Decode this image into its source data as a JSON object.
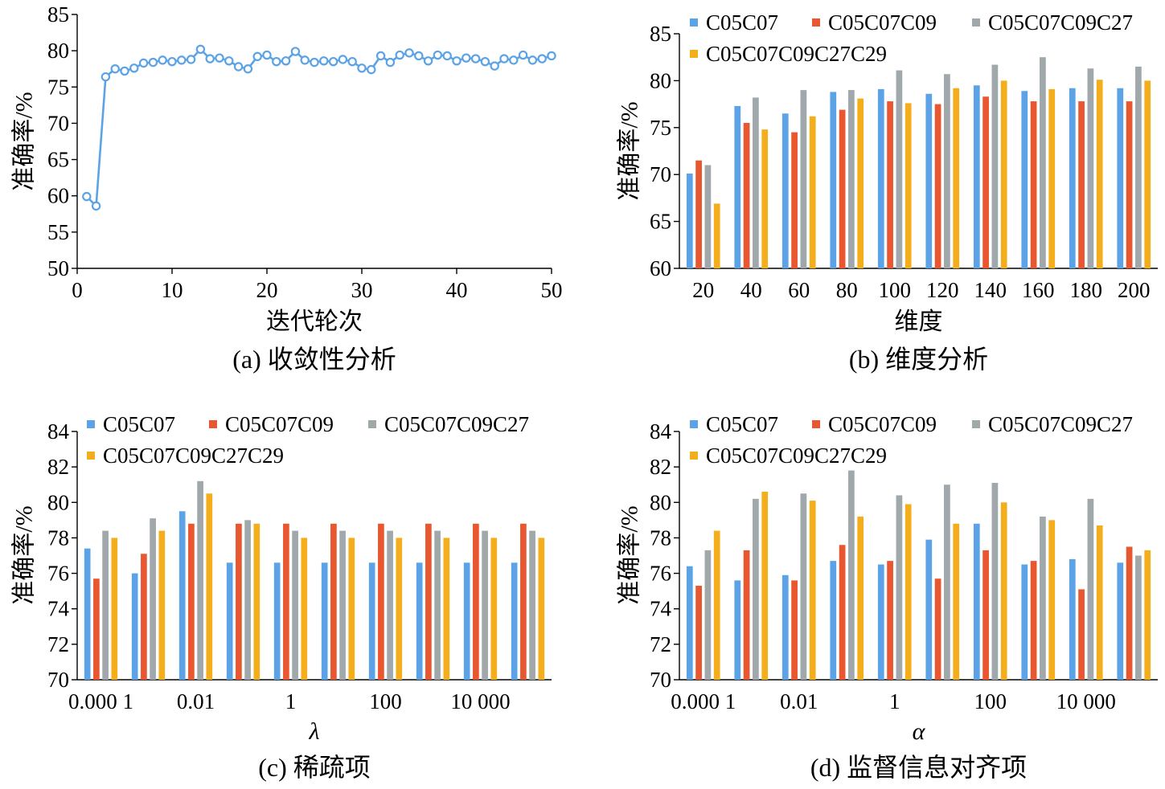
{
  "charts": [
    {
      "id": "a",
      "type": "line",
      "caption": "(a) 收敛性分析",
      "xlabel": "迭代轮次",
      "ylabel": "准确率/%",
      "xlim": [
        0,
        50
      ],
      "ylim": [
        50,
        85
      ],
      "xticks": [
        0,
        10,
        20,
        30,
        40,
        50
      ],
      "yticks": [
        50,
        55,
        60,
        65,
        70,
        75,
        80,
        85
      ],
      "color": "#5BA3E6",
      "x": [
        1,
        2,
        3,
        4,
        5,
        6,
        7,
        8,
        9,
        10,
        11,
        12,
        13,
        14,
        15,
        16,
        17,
        18,
        19,
        20,
        21,
        22,
        23,
        24,
        25,
        26,
        27,
        28,
        29,
        30,
        31,
        32,
        33,
        34,
        35,
        36,
        37,
        38,
        39,
        40,
        41,
        42,
        43,
        44,
        45,
        46,
        47,
        48,
        49,
        50
      ],
      "y": [
        59.9,
        58.6,
        76.4,
        77.5,
        77.2,
        77.6,
        78.3,
        78.4,
        78.7,
        78.5,
        78.7,
        78.8,
        80.2,
        78.9,
        79.0,
        78.6,
        77.8,
        77.5,
        79.2,
        79.4,
        78.5,
        78.6,
        79.9,
        78.7,
        78.4,
        78.6,
        78.5,
        78.8,
        78.5,
        77.6,
        77.4,
        79.3,
        78.4,
        79.4,
        79.7,
        79.3,
        78.6,
        79.4,
        79.3,
        78.6,
        79.0,
        78.9,
        78.5,
        77.9,
        78.9,
        78.7,
        79.4,
        78.7,
        78.9,
        79.3
      ]
    },
    {
      "id": "b",
      "type": "bar",
      "caption": "(b) 维度分析",
      "xlabel": "维度",
      "ylabel": "准确率/%",
      "ylim": [
        60,
        85
      ],
      "yticks": [
        60,
        65,
        70,
        75,
        80,
        85
      ],
      "categories": [
        "20",
        "40",
        "60",
        "80",
        "100",
        "120",
        "140",
        "160",
        "180",
        "200"
      ],
      "series": [
        {
          "name": "C05C07",
          "color": "#5BA3E6",
          "values": [
            70.1,
            77.3,
            76.5,
            78.8,
            79.1,
            78.6,
            79.5,
            78.9,
            79.2,
            79.2
          ]
        },
        {
          "name": "C05C07C09",
          "color": "#E8572F",
          "values": [
            71.5,
            75.5,
            74.5,
            76.9,
            77.8,
            77.5,
            78.3,
            77.8,
            77.8,
            77.8
          ]
        },
        {
          "name": "C05C07C09C27",
          "color": "#A0A8AC",
          "values": [
            71.0,
            78.2,
            79.0,
            79.0,
            81.1,
            80.7,
            81.7,
            82.5,
            81.3,
            81.5
          ]
        },
        {
          "name": "C05C07C09C27C29",
          "color": "#F5AE1B",
          "values": [
            66.9,
            74.8,
            76.2,
            78.1,
            77.6,
            79.2,
            80.0,
            79.1,
            80.1,
            80.0
          ]
        }
      ]
    },
    {
      "id": "c",
      "type": "bar",
      "caption": "(c) 稀疏项",
      "xlabel": "λ",
      "ylabel": "准确率/%",
      "ylim": [
        70,
        84
      ],
      "yticks": [
        70,
        72,
        74,
        76,
        78,
        80,
        82,
        84
      ],
      "categories": [
        "0.000 1",
        "",
        "0.01",
        "",
        "1",
        "",
        "100",
        "",
        "10 000",
        ""
      ],
      "series": [
        {
          "name": "C05C07",
          "color": "#5BA3E6",
          "values": [
            77.4,
            76.0,
            79.5,
            76.6,
            76.6,
            76.6,
            76.6,
            76.6,
            76.6,
            76.6
          ]
        },
        {
          "name": "C05C07C09",
          "color": "#E8572F",
          "values": [
            75.7,
            77.1,
            78.8,
            78.8,
            78.8,
            78.8,
            78.8,
            78.8,
            78.8,
            78.8
          ]
        },
        {
          "name": "C05C07C09C27",
          "color": "#A0A8AC",
          "values": [
            78.4,
            79.1,
            81.2,
            79.0,
            78.4,
            78.4,
            78.4,
            78.4,
            78.4,
            78.4
          ]
        },
        {
          "name": "C05C07C09C27C29",
          "color": "#F5AE1B",
          "values": [
            78.0,
            78.4,
            80.5,
            78.8,
            78.0,
            78.0,
            78.0,
            78.0,
            78.0,
            78.0
          ]
        }
      ]
    },
    {
      "id": "d",
      "type": "bar",
      "caption": "(d) 监督信息对齐项",
      "xlabel": "α",
      "ylabel": "准确率/%",
      "ylim": [
        70,
        84
      ],
      "yticks": [
        70,
        72,
        74,
        76,
        78,
        80,
        82,
        84
      ],
      "categories": [
        "0.000 1",
        "",
        "0.01",
        "",
        "1",
        "",
        "100",
        "",
        "10 000",
        ""
      ],
      "series": [
        {
          "name": "C05C07",
          "color": "#5BA3E6",
          "values": [
            76.4,
            75.6,
            75.9,
            76.7,
            76.5,
            77.9,
            78.8,
            76.5,
            76.8,
            76.6
          ]
        },
        {
          "name": "C05C07C09",
          "color": "#E8572F",
          "values": [
            75.3,
            77.3,
            75.6,
            77.6,
            76.7,
            75.7,
            77.3,
            76.7,
            75.1,
            77.5
          ]
        },
        {
          "name": "C05C07C09C27",
          "color": "#A0A8AC",
          "values": [
            77.3,
            80.2,
            80.5,
            81.8,
            80.4,
            81.0,
            81.1,
            79.2,
            80.2,
            77.0
          ]
        },
        {
          "name": "C05C07C09C27C29",
          "color": "#F5AE1B",
          "values": [
            78.4,
            80.6,
            80.1,
            79.2,
            79.9,
            78.8,
            80.0,
            79.0,
            78.7,
            77.3
          ]
        }
      ]
    }
  ]
}
